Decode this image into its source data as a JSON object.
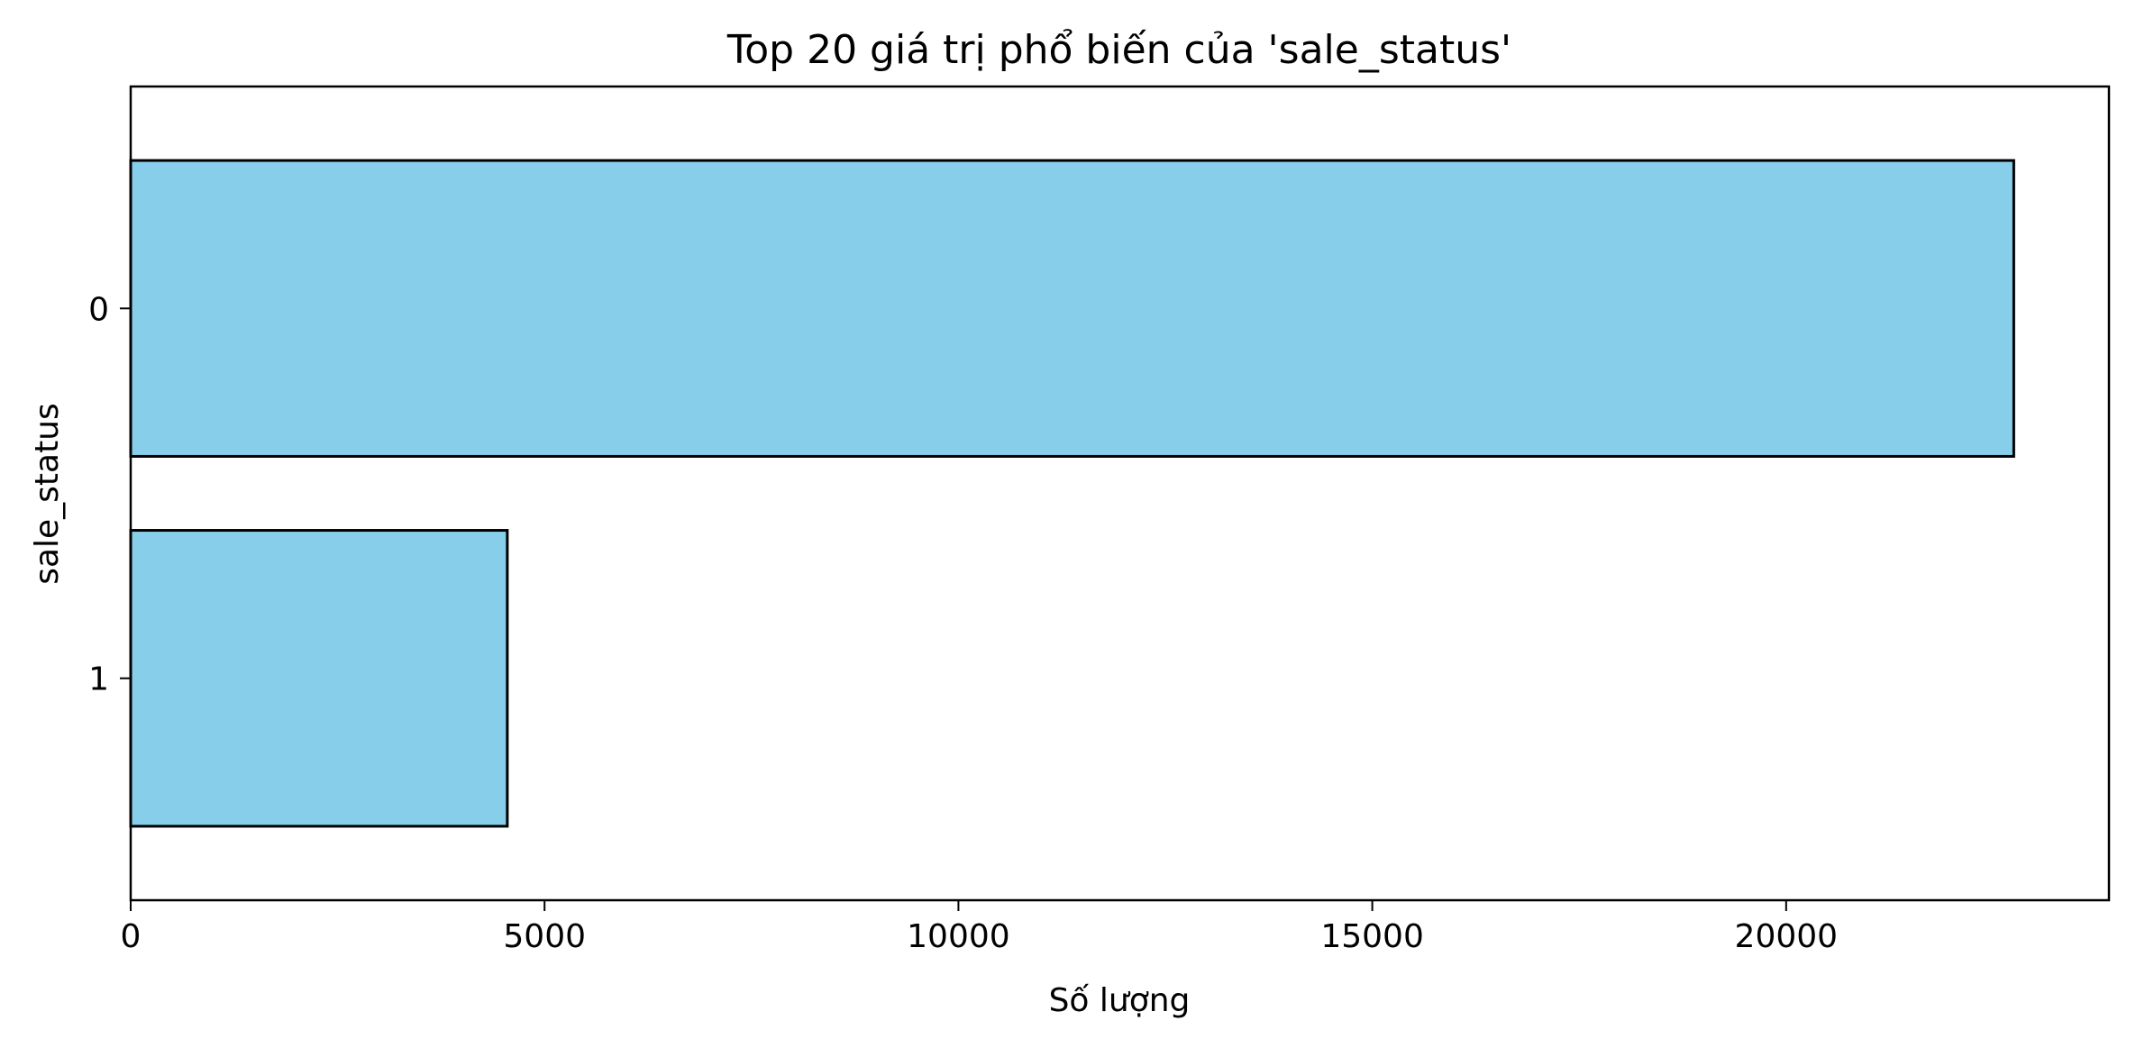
{
  "chart_data": {
    "type": "bar",
    "orientation": "horizontal",
    "title": "Top 20 giá trị phổ biến của 'sale_status'",
    "xlabel": "Số lượng",
    "ylabel": "sale_status",
    "categories": [
      "0",
      "1"
    ],
    "values": [
      22750,
      4550
    ],
    "xlim": [
      0,
      23900
    ],
    "xticks": [
      0,
      5000,
      10000,
      15000,
      20000
    ],
    "xtick_labels": [
      "0",
      "5000",
      "10000",
      "15000",
      "20000"
    ],
    "grid": false,
    "legend": "none",
    "colors": {
      "bar_fill": "#87CEEB",
      "bar_edge": "#000000",
      "axes": "#000000",
      "background": "#ffffff"
    }
  }
}
